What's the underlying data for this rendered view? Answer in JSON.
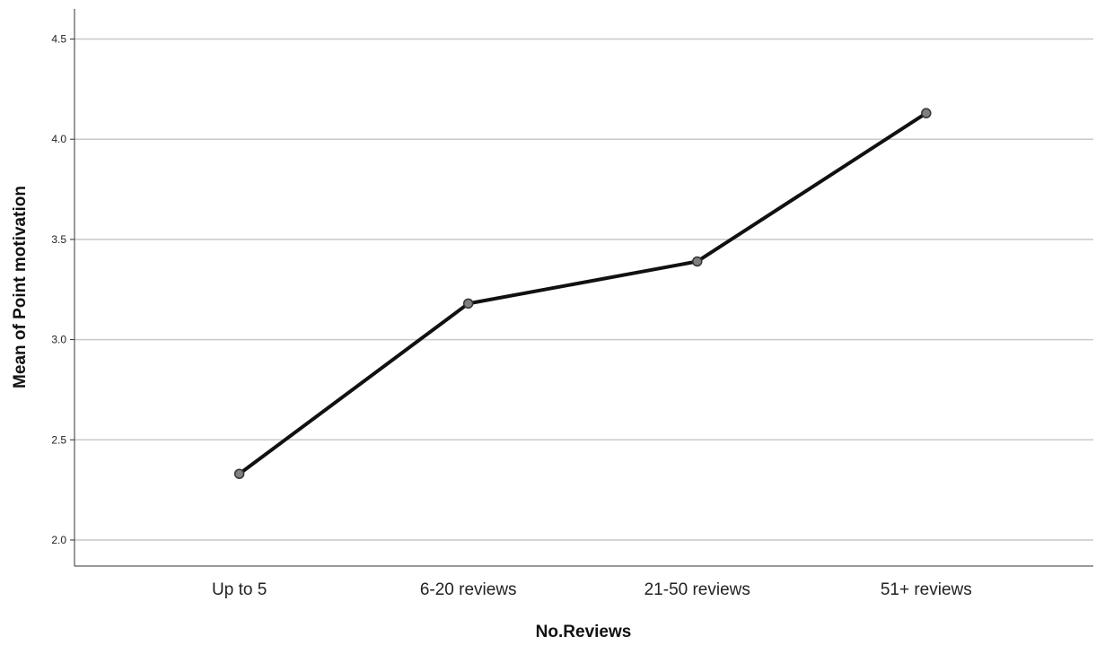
{
  "chart_data": {
    "type": "line",
    "categories": [
      "Up to 5",
      "6-20 reviews",
      "21-50 reviews",
      "51+ reviews"
    ],
    "values": [
      2.33,
      3.18,
      3.39,
      4.13
    ],
    "xlabel": "No.Reviews",
    "ylabel": "Mean of Point motivation",
    "ylim": [
      1.87,
      4.65
    ],
    "yticks": [
      "2.0",
      "2.5",
      "3.0",
      "3.5",
      "4.0",
      "4.5"
    ],
    "grid": true,
    "colors": {
      "line": "#111111",
      "marker_fill": "#7f7f7f",
      "grid": "#c8c8c8",
      "axis": "#333333"
    }
  }
}
